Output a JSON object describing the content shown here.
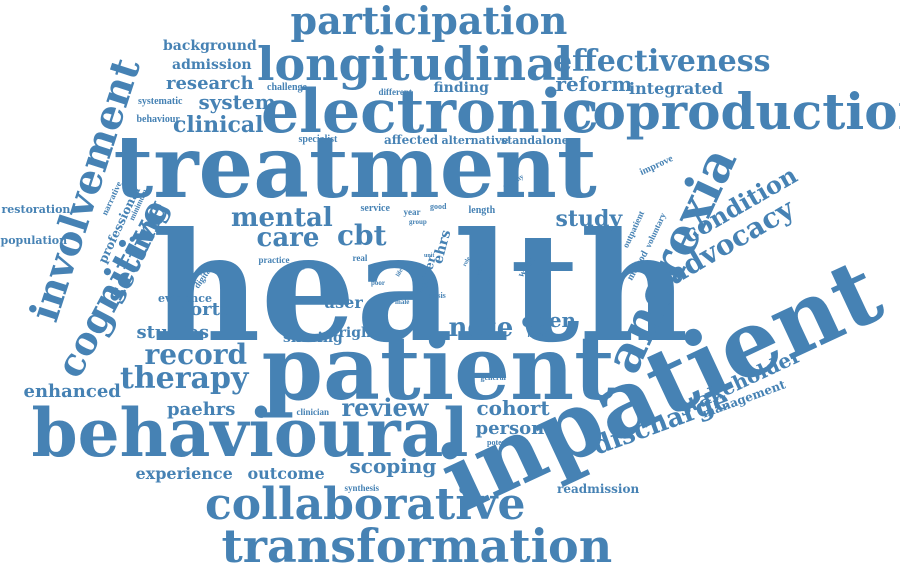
{
  "style": {
    "word_color": "#4682b4",
    "background": "#ffffff"
  },
  "words": [
    {
      "t": "health",
      "k": "health"
    },
    {
      "t": "inpatient",
      "k": "inpatient"
    },
    {
      "t": "patient",
      "k": "patient"
    },
    {
      "t": "treatment",
      "k": "treatment"
    },
    {
      "t": "behavioural",
      "k": "behavioural"
    },
    {
      "t": "electronic",
      "k": "electronic"
    },
    {
      "t": "coproduction",
      "k": "coproduction"
    },
    {
      "t": "anorexia",
      "k": "anorexia"
    },
    {
      "t": "longitudinal",
      "k": "longitudinal"
    },
    {
      "t": "transformation",
      "k": "transformation"
    },
    {
      "t": "collaborative",
      "k": "collaborative"
    },
    {
      "t": "involvement",
      "k": "involvement"
    },
    {
      "t": "cognitive",
      "k": "cognitive"
    },
    {
      "t": "participation",
      "k": "participation"
    },
    {
      "t": "effectiveness",
      "k": "effectiveness"
    },
    {
      "t": "setting",
      "k": "setting"
    },
    {
      "t": "therapy",
      "k": "therapy"
    },
    {
      "t": "record",
      "k": "record"
    },
    {
      "t": "mental",
      "k": "mental"
    },
    {
      "t": "care",
      "k": "care"
    },
    {
      "t": "cbt",
      "k": "cbt"
    },
    {
      "t": "advocacy",
      "k": "advocacy"
    },
    {
      "t": "condition",
      "k": "condition"
    },
    {
      "t": "discharge",
      "k": "discharge"
    },
    {
      "t": "review",
      "k": "review"
    },
    {
      "t": "note",
      "k": "note"
    },
    {
      "t": "clinical",
      "k": "clinical"
    },
    {
      "t": "study",
      "k": "study"
    },
    {
      "t": "stakeholder",
      "k": "stakeholder"
    },
    {
      "t": "scoping",
      "k": "scoping"
    },
    {
      "t": "cohort",
      "k": "cohort"
    },
    {
      "t": "reform",
      "k": "reform"
    },
    {
      "t": "system",
      "k": "system"
    },
    {
      "t": "research",
      "k": "research"
    },
    {
      "t": "integrated",
      "k": "integrated"
    },
    {
      "t": "open",
      "k": "open"
    },
    {
      "t": "person",
      "k": "person"
    },
    {
      "t": "portal",
      "k": "portal"
    },
    {
      "t": "studies",
      "k": "studies"
    },
    {
      "t": "paehrs",
      "k": "paehrs"
    },
    {
      "t": "enhanced",
      "k": "enhanced"
    },
    {
      "t": "outcome",
      "k": "outcome"
    },
    {
      "t": "experience",
      "k": "experience"
    },
    {
      "t": "admission",
      "k": "admission"
    },
    {
      "t": "background",
      "k": "background"
    },
    {
      "t": "finding",
      "k": "finding"
    },
    {
      "t": "user",
      "k": "user"
    },
    {
      "t": "sharing",
      "k": "sharing"
    },
    {
      "t": "right",
      "k": "right"
    },
    {
      "t": "management",
      "k": "management"
    },
    {
      "t": "readmission",
      "k": "readmission"
    },
    {
      "t": "ehrs",
      "k": "ehrs"
    },
    {
      "t": "professional",
      "k": "professional"
    },
    {
      "t": "evidence",
      "k": "evidence"
    },
    {
      "t": "affected",
      "k": "affected"
    },
    {
      "t": "alternative",
      "k": "alternative"
    },
    {
      "t": "standalone",
      "k": "standalone"
    },
    {
      "t": "specialist",
      "k": "specialist"
    },
    {
      "t": "challenge",
      "k": "challenge"
    },
    {
      "t": "different",
      "k": "different"
    },
    {
      "t": "systematic",
      "k": "systematic"
    },
    {
      "t": "behaviour",
      "k": "behaviour"
    },
    {
      "t": "narrative",
      "k": "narrative"
    },
    {
      "t": "minimum",
      "k": "minimum"
    },
    {
      "t": "restoration",
      "k": "restoration"
    },
    {
      "t": "population",
      "k": "population"
    },
    {
      "t": "improve",
      "k": "improve"
    },
    {
      "t": "outpatient",
      "k": "outpatient"
    },
    {
      "t": "voluntary",
      "k": "voluntary"
    },
    {
      "t": "method",
      "k": "method"
    },
    {
      "t": "week",
      "k": "week"
    },
    {
      "t": "length",
      "k": "length"
    },
    {
      "t": "better",
      "k": "better"
    },
    {
      "t": "service",
      "k": "service"
    },
    {
      "t": "year",
      "k": "year"
    },
    {
      "t": "good",
      "k": "good"
    },
    {
      "t": "group",
      "k": "group"
    },
    {
      "t": "practice",
      "k": "practice"
    },
    {
      "t": "ethical",
      "k": "ethical"
    },
    {
      "t": "digital",
      "k": "digital"
    },
    {
      "t": "real",
      "k": "real"
    },
    {
      "t": "poor",
      "k": "poor"
    },
    {
      "t": "male",
      "k": "male"
    },
    {
      "t": "crisis",
      "k": "crisis"
    },
    {
      "t": "clinician",
      "k": "clinician"
    },
    {
      "t": "general",
      "k": "general"
    },
    {
      "t": "model",
      "k": "model"
    },
    {
      "t": "potential",
      "k": "potential"
    },
    {
      "t": "synthesis",
      "k": "synthesis"
    },
    {
      "t": "healthy",
      "k": "healthy"
    },
    {
      "t": "unit",
      "k": "unit"
    },
    {
      "t": "third",
      "k": "third"
    },
    {
      "t": "life",
      "k": "life"
    },
    {
      "t": "role",
      "k": "role"
    },
    {
      "t": "weight",
      "k": "weight"
    },
    {
      "t": "result",
      "k": "result"
    }
  ]
}
